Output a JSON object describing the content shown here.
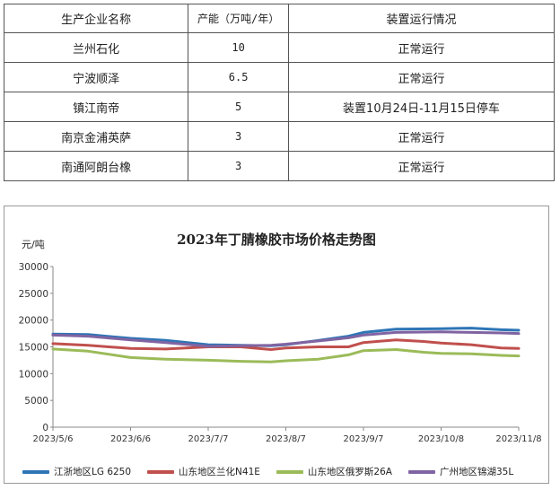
{
  "table": {
    "headers": [
      "生产企业名称",
      "产能（万吨/年）",
      "装置运行情况"
    ],
    "rows": [
      [
        "兰州石化",
        "10",
        "正常运行"
      ],
      [
        "宁波顺泽",
        "6.5",
        "正常运行"
      ],
      [
        "镇江南帝",
        "5",
        "装置10月24日-11月15日停车"
      ],
      [
        "南京金浦英萨",
        "3",
        "正常运行"
      ],
      [
        "南通阿朗台橡",
        "3",
        "正常运行"
      ]
    ]
  },
  "chart_data": {
    "type": "line",
    "title": "2023年丁腈橡胶市场价格走势图",
    "ylabel": "元/吨",
    "xlabel": "",
    "ylim": [
      0,
      30000
    ],
    "yticks": [
      0,
      5000,
      10000,
      15000,
      20000,
      25000,
      30000
    ],
    "xlim": [
      "2023/5/6",
      "2023/11/8"
    ],
    "xticks": [
      "2023/5/6",
      "2023/6/6",
      "2023/7/7",
      "2023/8/7",
      "2023/9/7",
      "2023/10/8",
      "2023/11/8"
    ],
    "grid": false,
    "legend_position": "bottom",
    "series": [
      {
        "name": "江浙地区LG 6250",
        "color": "#2e75b6",
        "points": [
          [
            "2023/5/6",
            17400
          ],
          [
            "2023/5/20",
            17300
          ],
          [
            "2023/6/6",
            16600
          ],
          [
            "2023/6/20",
            16200
          ],
          [
            "2023/7/7",
            15400
          ],
          [
            "2023/7/20",
            15300
          ],
          [
            "2023/8/1",
            15200
          ],
          [
            "2023/8/7",
            15400
          ],
          [
            "2023/8/20",
            16200
          ],
          [
            "2023/9/1",
            17000
          ],
          [
            "2023/9/7",
            17700
          ],
          [
            "2023/9/20",
            18300
          ],
          [
            "2023/10/8",
            18400
          ],
          [
            "2023/10/20",
            18500
          ],
          [
            "2023/11/1",
            18200
          ],
          [
            "2023/11/8",
            18100
          ]
        ]
      },
      {
        "name": "山东地区兰化N41E",
        "color": "#c0504d",
        "points": [
          [
            "2023/5/6",
            15600
          ],
          [
            "2023/5/20",
            15300
          ],
          [
            "2023/6/6",
            14700
          ],
          [
            "2023/6/20",
            14600
          ],
          [
            "2023/7/7",
            15000
          ],
          [
            "2023/7/20",
            15000
          ],
          [
            "2023/8/1",
            14500
          ],
          [
            "2023/8/7",
            14800
          ],
          [
            "2023/8/20",
            15000
          ],
          [
            "2023/9/1",
            15000
          ],
          [
            "2023/9/7",
            15800
          ],
          [
            "2023/9/20",
            16300
          ],
          [
            "2023/10/1",
            16000
          ],
          [
            "2023/10/8",
            15700
          ],
          [
            "2023/10/20",
            15400
          ],
          [
            "2023/11/1",
            14800
          ],
          [
            "2023/11/8",
            14700
          ]
        ]
      },
      {
        "name": "山东地区俄罗斯26A",
        "color": "#9bbb59",
        "points": [
          [
            "2023/5/6",
            14600
          ],
          [
            "2023/5/20",
            14200
          ],
          [
            "2023/6/6",
            13000
          ],
          [
            "2023/6/20",
            12700
          ],
          [
            "2023/7/7",
            12500
          ],
          [
            "2023/7/20",
            12300
          ],
          [
            "2023/8/1",
            12200
          ],
          [
            "2023/8/7",
            12400
          ],
          [
            "2023/8/20",
            12700
          ],
          [
            "2023/9/1",
            13500
          ],
          [
            "2023/9/7",
            14300
          ],
          [
            "2023/9/20",
            14500
          ],
          [
            "2023/10/1",
            14000
          ],
          [
            "2023/10/8",
            13800
          ],
          [
            "2023/10/20",
            13700
          ],
          [
            "2023/11/1",
            13400
          ],
          [
            "2023/11/8",
            13300
          ]
        ]
      },
      {
        "name": "广州地区锦湖35L",
        "color": "#8064a2",
        "points": [
          [
            "2023/5/6",
            17200
          ],
          [
            "2023/5/20",
            17000
          ],
          [
            "2023/6/6",
            16300
          ],
          [
            "2023/6/20",
            15800
          ],
          [
            "2023/7/7",
            15100
          ],
          [
            "2023/7/20",
            15200
          ],
          [
            "2023/8/1",
            15300
          ],
          [
            "2023/8/7",
            15500
          ],
          [
            "2023/8/20",
            16100
          ],
          [
            "2023/9/1",
            16700
          ],
          [
            "2023/9/7",
            17200
          ],
          [
            "2023/9/20",
            17700
          ],
          [
            "2023/10/8",
            17800
          ],
          [
            "2023/10/20",
            17700
          ],
          [
            "2023/11/1",
            17600
          ],
          [
            "2023/11/8",
            17500
          ]
        ]
      }
    ]
  }
}
